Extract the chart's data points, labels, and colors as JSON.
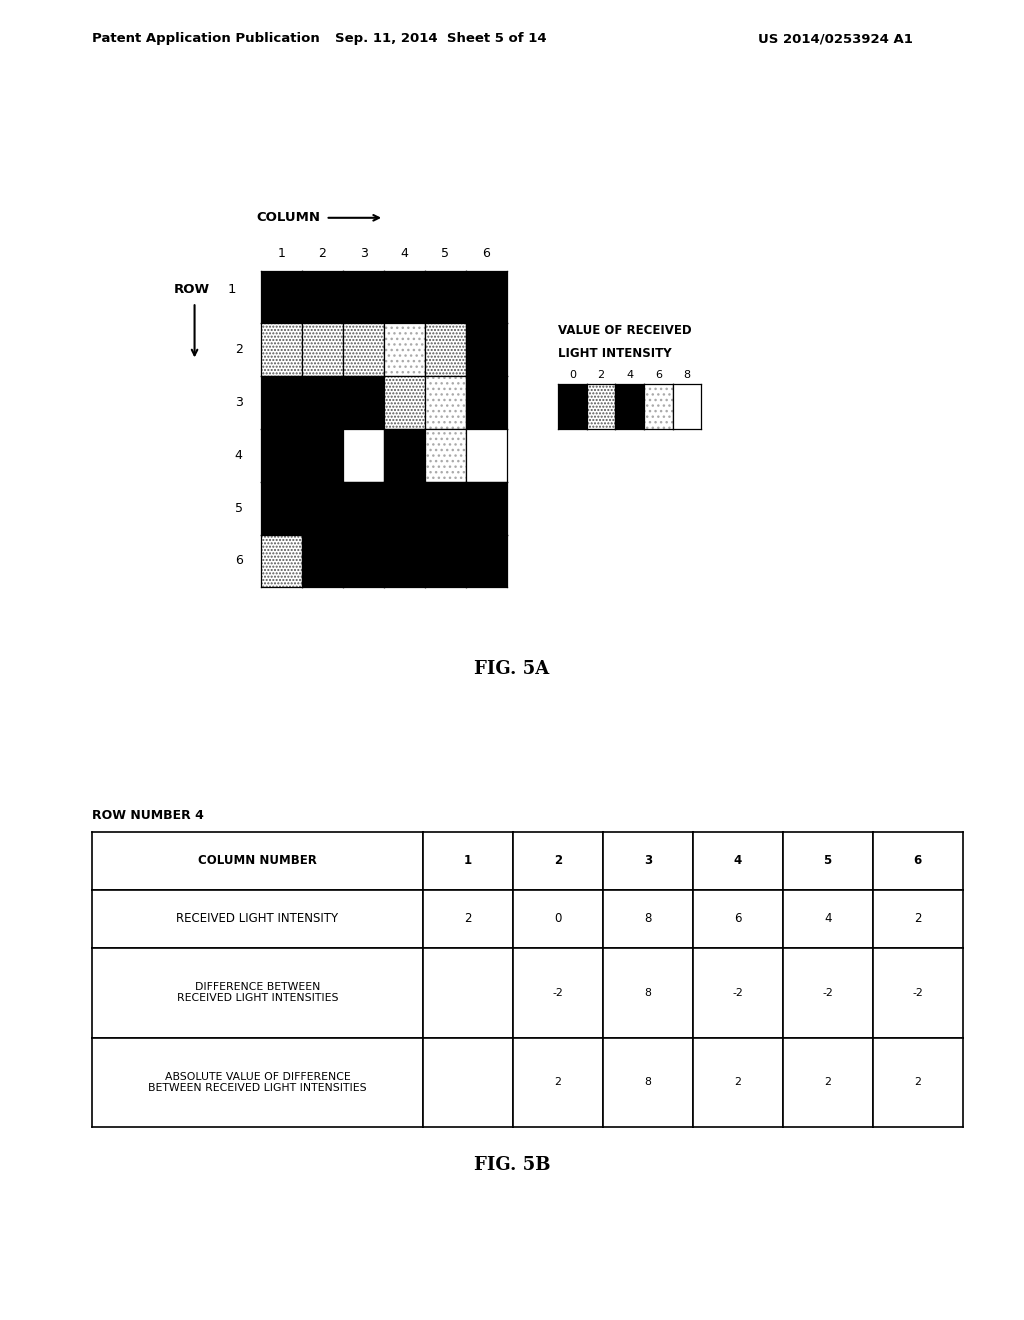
{
  "header_left": "Patent Application Publication",
  "header_mid": "Sep. 11, 2014  Sheet 5 of 14",
  "header_right": "US 2014/0253924 A1",
  "fig5a_label": "FIG. 5A",
  "fig5b_label": "FIG. 5B",
  "grid_values": [
    [
      4,
      4,
      4,
      4,
      4,
      4
    ],
    [
      2,
      2,
      2,
      6,
      2,
      0
    ],
    [
      4,
      0,
      4,
      2,
      6,
      4
    ],
    [
      4,
      0,
      8,
      4,
      6,
      8
    ],
    [
      4,
      0,
      4,
      4,
      4,
      4
    ],
    [
      2,
      4,
      4,
      4,
      4,
      4
    ]
  ],
  "legend_values": [
    0,
    2,
    4,
    6,
    8
  ],
  "legend_title1": "VALUE OF RECEIVED",
  "legend_title2": "LIGHT INTENSITY",
  "table_title": "ROW NUMBER 4",
  "table_col_header": [
    "COLUMN NUMBER",
    "1",
    "2",
    "3",
    "4",
    "5",
    "6"
  ],
  "table_row2": [
    "RECEIVED LIGHT INTENSITY",
    "2",
    "0",
    "8",
    "6",
    "4",
    "2"
  ],
  "table_row3": [
    "DIFFERENCE BETWEEN\nRECEIVED LIGHT INTENSITIES",
    "",
    "-2",
    "8",
    "-2",
    "-2",
    "-2"
  ],
  "table_row4": [
    "ABSOLUTE VALUE OF DIFFERENCE\nBETWEEN RECEIVED LIGHT INTENSITIES",
    "",
    "2",
    "8",
    "2",
    "2",
    "2"
  ],
  "bg": "#ffffff"
}
